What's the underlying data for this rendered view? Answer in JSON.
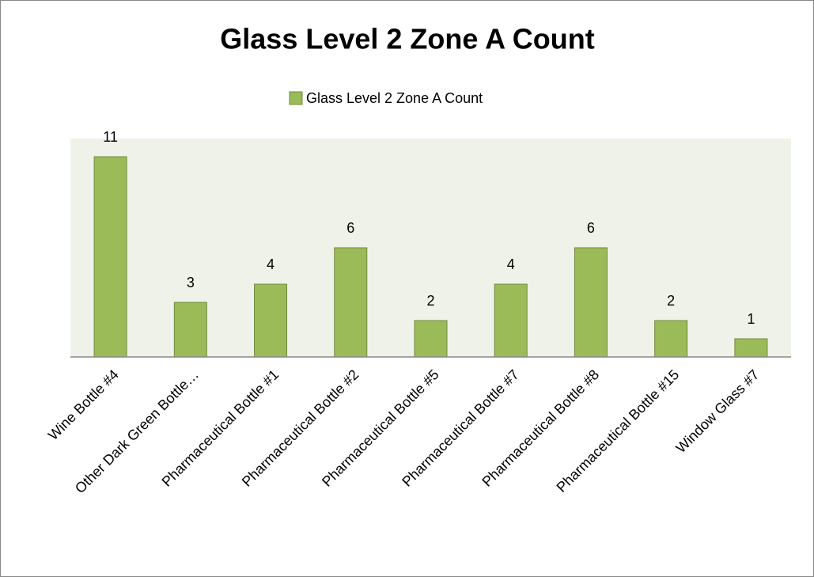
{
  "chart_data": {
    "type": "bar",
    "title": "Glass Level 2 Zone A Count",
    "categories": [
      "Wine Bottle #4",
      "Other Dark Green Bottle…",
      "Pharmaceutical Bottle #1",
      "Pharmaceutical Bottle #2",
      "Pharmaceutical Bottle #5",
      "Pharmaceutical Bottle #7",
      "Pharmaceutical Bottle #8",
      "Pharmaceutical Bottle #15",
      "Window Glass #7"
    ],
    "series": [
      {
        "name": "Glass Level 2 Zone A Count",
        "color": "#9bbb59",
        "values": [
          11,
          3,
          4,
          6,
          2,
          4,
          6,
          2,
          1
        ]
      }
    ],
    "ylim": [
      0,
      12
    ],
    "legend": "top",
    "data_labels": true
  }
}
